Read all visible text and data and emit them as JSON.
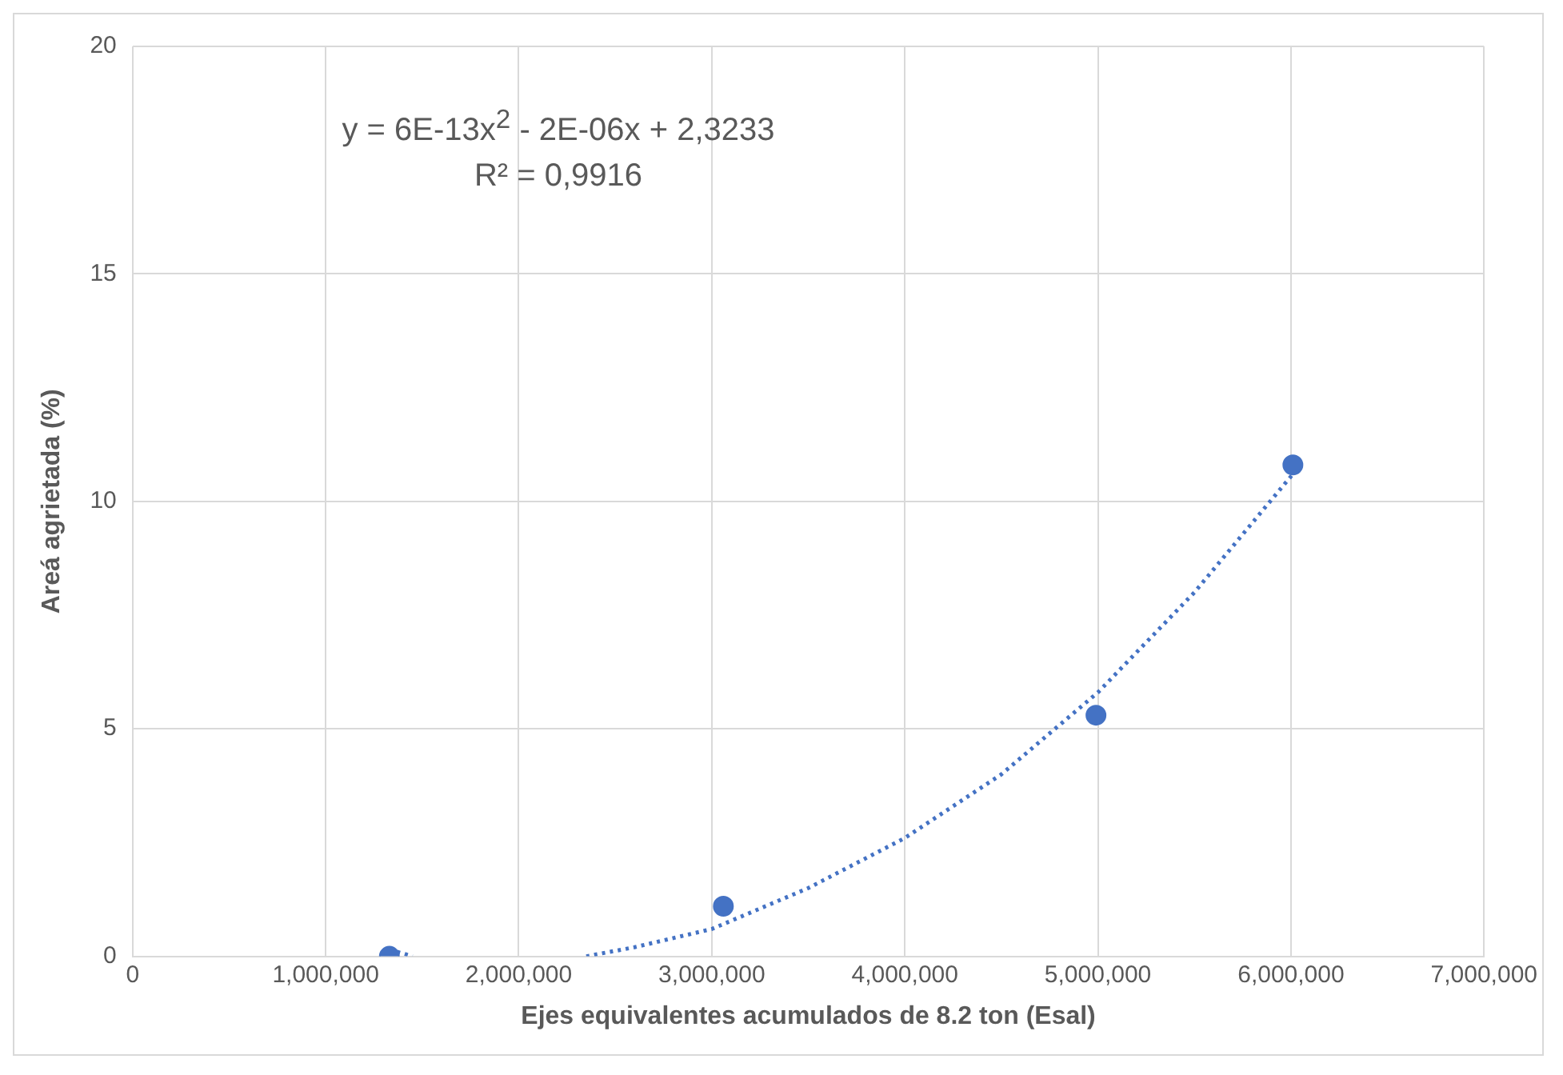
{
  "chart_data": {
    "type": "scatter",
    "xlabel": "Ejes equivalentes acumulados de 8.2 ton (Esal)",
    "ylabel": "Areá agrietada (%)",
    "annotations": [
      "y = 6E-13x$^{2}$ - 2E-06x + 2,3233",
      "R² = 0,9916"
    ],
    "series": [
      {
        "type": "scatter",
        "color": "#4472c4",
        "marker": "circle",
        "x": [
          1330000,
          3060000,
          4990000,
          6010000
        ],
        "values": [
          0,
          1.1,
          5.3,
          10.8
        ]
      },
      {
        "type": "line",
        "color": "#4472c4",
        "marker": "none",
        "line_style": "dotted",
        "x": [
          1330000,
          1450000,
          1900000,
          2350000,
          2600000,
          3000000,
          3500000,
          4000000,
          4500000,
          5000000,
          5500000,
          6010000
        ],
        "values": [
          0.15,
          0,
          null,
          0,
          0.2,
          0.6,
          1.5,
          2.6,
          4.0,
          5.8,
          8.0,
          10.6
        ]
      }
    ],
    "xlim": [
      0,
      7000000
    ],
    "xticks": [
      0,
      {
        "value": 1000000,
        "label": "1,000,000"
      },
      {
        "value": 2000000,
        "label": "2,000,000"
      },
      {
        "value": 3000000,
        "label": "3,000,000"
      },
      {
        "value": 4000000,
        "label": "4,000,000"
      },
      {
        "value": 5000000,
        "label": "5,000,000"
      },
      {
        "value": 6000000,
        "label": "6,000,000"
      },
      {
        "value": 7000000,
        "label": "7,000,000"
      }
    ],
    "ylim": [
      0,
      20
    ],
    "yticks": [
      0,
      5,
      10,
      15,
      20
    ],
    "grid": true,
    "legend": false
  }
}
